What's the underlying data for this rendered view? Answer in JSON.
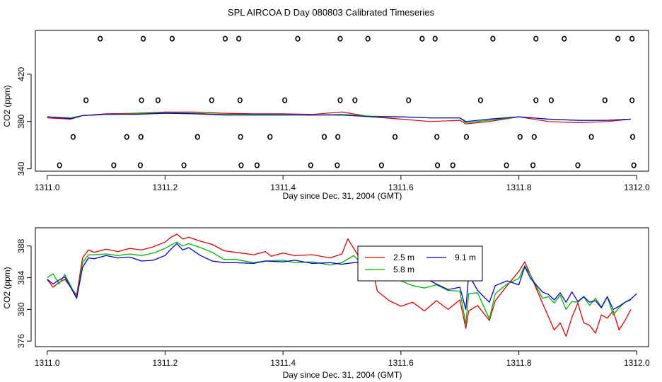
{
  "title": "SPL AIRCOA D  Day 080803  Calibrated Timeseries",
  "colors": {
    "s25": "#e00000",
    "s58": "#00b400",
    "s91": "#0000d0",
    "axis": "#000000"
  },
  "chart_data": [
    {
      "type": "line",
      "title": "SPL AIRCOA D  Day 080803  Calibrated Timeseries",
      "xlabel": "Day since Dec. 31, 2004 (GMT)",
      "ylabel": "CO2 (ppm)",
      "xlim": [
        1310.98,
        1312.02
      ],
      "ylim": [
        338,
        457
      ],
      "xticks": [
        1311.0,
        1311.2,
        1311.4,
        1311.6,
        1311.8,
        1312.0
      ],
      "xtick_labels": [
        "1311.0",
        "1311.2",
        "1311.4",
        "1311.6",
        "1311.8",
        "1312.0"
      ],
      "yticks": [
        340,
        380,
        420
      ],
      "ytick_labels": [
        "340",
        "380",
        "420"
      ],
      "series": [
        {
          "name": "2.5 m",
          "x": [
            1311.0,
            1311.04,
            1311.06,
            1311.1,
            1311.15,
            1311.2,
            1311.25,
            1311.3,
            1311.35,
            1311.4,
            1311.45,
            1311.5,
            1311.55,
            1311.6,
            1311.65,
            1311.7,
            1311.71,
            1311.75,
            1311.8,
            1311.85,
            1311.9,
            1311.95,
            1311.99
          ],
          "y": [
            383,
            382,
            385,
            386.5,
            387,
            388,
            388,
            387,
            386.5,
            386.5,
            386,
            388,
            384,
            382,
            380,
            381,
            378,
            380,
            384,
            380,
            379,
            380,
            382
          ]
        },
        {
          "name": "5.8 m",
          "x": [
            1311.0,
            1311.04,
            1311.06,
            1311.1,
            1311.15,
            1311.2,
            1311.25,
            1311.3,
            1311.35,
            1311.4,
            1311.45,
            1311.5,
            1311.55,
            1311.6,
            1311.65,
            1311.7,
            1311.71,
            1311.75,
            1311.8,
            1311.85,
            1311.9,
            1311.95,
            1311.99
          ],
          "y": [
            384,
            383,
            385,
            386,
            386.5,
            387.5,
            387,
            386,
            386,
            386,
            385.5,
            386,
            384.5,
            384,
            383,
            383,
            379,
            381,
            384,
            382,
            381,
            381,
            382
          ]
        },
        {
          "name": "9.1 m",
          "x": [
            1311.0,
            1311.04,
            1311.06,
            1311.1,
            1311.15,
            1311.2,
            1311.25,
            1311.3,
            1311.35,
            1311.4,
            1311.45,
            1311.5,
            1311.55,
            1311.6,
            1311.65,
            1311.7,
            1311.71,
            1311.75,
            1311.8,
            1311.85,
            1311.9,
            1311.95,
            1311.99
          ],
          "y": [
            384,
            382.5,
            385,
            386,
            386,
            387,
            386.5,
            385.5,
            385.5,
            385.5,
            385.5,
            385.5,
            384,
            384,
            383,
            383,
            380,
            382,
            384,
            382,
            381,
            381,
            382
          ]
        }
      ],
      "markers": {
        "symbol": "open circle",
        "groups": [
          {
            "y": 450,
            "x": [
              1311.09,
              1311.163,
              1311.212,
              1311.302,
              1311.325,
              1311.425,
              1311.497,
              1311.544,
              1311.636,
              1311.658,
              1311.756,
              1311.829,
              1311.877,
              1311.968,
              1311.992
            ]
          },
          {
            "y": 398,
            "x": [
              1311.066,
              1311.16,
              1311.188,
              1311.279,
              1311.327,
              1311.403,
              1311.497,
              1311.522,
              1311.613,
              1311.735,
              1311.829,
              1311.855,
              1311.946,
              1311.992
            ]
          },
          {
            "y": 367,
            "x": [
              1311.044,
              1311.135,
              1311.159,
              1311.255,
              1311.328,
              1311.378,
              1311.47,
              1311.493,
              1311.59,
              1311.661,
              1311.711,
              1311.802,
              1311.826,
              1311.923,
              1311.993
            ]
          },
          {
            "y": 343,
            "x": [
              1311.021,
              1311.113,
              1311.158,
              1311.232,
              1311.329,
              1311.356,
              1311.447,
              1311.492,
              1311.567,
              1311.662,
              1311.688,
              1311.779,
              1311.824,
              1311.9,
              1311.995
            ]
          }
        ]
      }
    },
    {
      "type": "line",
      "xlabel": "Day since Dec. 31, 2004 (GMT)",
      "ylabel": "CO2 (ppm)",
      "xlim": [
        1310.98,
        1312.02
      ],
      "ylim": [
        375.3,
        390.3
      ],
      "xticks": [
        1311.0,
        1311.2,
        1311.4,
        1311.6,
        1311.8,
        1312.0
      ],
      "xtick_labels": [
        "1311.0",
        "1311.2",
        "1311.4",
        "1311.6",
        "1311.8",
        "1312.0"
      ],
      "yticks": [
        376,
        380,
        384,
        388
      ],
      "ytick_labels": [
        "376",
        "380",
        "384",
        "388"
      ],
      "legend": {
        "placement": "center-right",
        "entries": [
          "2.5 m",
          "9.1 m",
          "5.8 m"
        ]
      },
      "series": [
        {
          "name": "2.5 m",
          "x": [
            1311.0,
            1311.01,
            1311.02,
            1311.03,
            1311.05,
            1311.06,
            1311.07,
            1311.08,
            1311.1,
            1311.12,
            1311.14,
            1311.16,
            1311.18,
            1311.2,
            1311.21,
            1311.22,
            1311.23,
            1311.24,
            1311.26,
            1311.28,
            1311.3,
            1311.32,
            1311.35,
            1311.37,
            1311.38,
            1311.4,
            1311.42,
            1311.45,
            1311.48,
            1311.5,
            1311.51,
            1311.53,
            1311.55,
            1311.56,
            1311.58,
            1311.6,
            1311.62,
            1311.64,
            1311.66,
            1311.68,
            1311.7,
            1311.71,
            1311.715,
            1311.73,
            1311.75,
            1311.76,
            1311.78,
            1311.8,
            1311.81,
            1311.82,
            1311.84,
            1311.85,
            1311.86,
            1311.87,
            1311.88,
            1311.89,
            1311.9,
            1311.91,
            1311.92,
            1311.93,
            1311.94,
            1311.95,
            1311.96,
            1311.97,
            1311.98,
            1311.99
          ],
          "y": [
            383.8,
            382.8,
            383.4,
            383.8,
            381.8,
            386.5,
            387.5,
            387.2,
            387.6,
            387.3,
            387.7,
            387.5,
            387.9,
            388.5,
            389.1,
            389.5,
            388.9,
            389.1,
            388.6,
            388.2,
            387.4,
            387.2,
            386.9,
            387.3,
            386.7,
            387.1,
            386.8,
            386.9,
            386.5,
            387.0,
            388.9,
            386.5,
            385.7,
            382.3,
            381.1,
            380.4,
            380.9,
            379.8,
            381.1,
            380.0,
            381.2,
            377.6,
            379.8,
            380.5,
            378.6,
            381.1,
            383.0,
            384.8,
            386.0,
            384.3,
            380.8,
            379.1,
            377.4,
            378.3,
            376.6,
            379.0,
            380.8,
            378.3,
            378.0,
            377.0,
            379.3,
            378.9,
            379.8,
            377.4,
            378.6,
            380.0
          ]
        },
        {
          "name": "5.8 m",
          "x": [
            1311.0,
            1311.01,
            1311.02,
            1311.03,
            1311.05,
            1311.06,
            1311.07,
            1311.08,
            1311.1,
            1311.12,
            1311.14,
            1311.16,
            1311.18,
            1311.2,
            1311.21,
            1311.22,
            1311.23,
            1311.24,
            1311.26,
            1311.28,
            1311.3,
            1311.32,
            1311.35,
            1311.37,
            1311.4,
            1311.42,
            1311.45,
            1311.48,
            1311.5,
            1311.52,
            1311.54,
            1311.56,
            1311.58,
            1311.6,
            1311.62,
            1311.64,
            1311.66,
            1311.68,
            1311.7,
            1311.71,
            1311.715,
            1311.73,
            1311.75,
            1311.76,
            1311.78,
            1311.8,
            1311.81,
            1311.82,
            1311.84,
            1311.85,
            1311.86,
            1311.87,
            1311.88,
            1311.89,
            1311.9,
            1311.91,
            1311.92,
            1311.93,
            1311.94,
            1311.95,
            1311.96,
            1311.97,
            1311.98,
            1311.99
          ],
          "y": [
            384.0,
            384.5,
            383.2,
            384.4,
            381.5,
            385.9,
            386.9,
            386.9,
            387.0,
            386.8,
            387.0,
            386.8,
            387.1,
            387.7,
            388.1,
            388.5,
            388.0,
            388.3,
            387.8,
            387.2,
            386.3,
            386.3,
            385.9,
            386.1,
            386.2,
            385.9,
            386.0,
            385.6,
            385.9,
            386.8,
            385.2,
            385.0,
            384.4,
            383.6,
            383.0,
            382.7,
            383.1,
            382.4,
            382.3,
            378.2,
            382.0,
            382.1,
            378.8,
            382.0,
            383.2,
            383.9,
            385.5,
            384.3,
            381.4,
            381.6,
            380.8,
            381.8,
            380.0,
            381.0,
            380.9,
            381.6,
            380.5,
            381.4,
            380.3,
            381.6,
            379.3,
            380.2,
            380.9,
            381.2
          ]
        },
        {
          "name": "9.1 m",
          "x": [
            1311.0,
            1311.01,
            1311.02,
            1311.03,
            1311.05,
            1311.06,
            1311.07,
            1311.08,
            1311.1,
            1311.12,
            1311.14,
            1311.16,
            1311.18,
            1311.2,
            1311.21,
            1311.22,
            1311.23,
            1311.24,
            1311.26,
            1311.28,
            1311.3,
            1311.32,
            1311.35,
            1311.37,
            1311.4,
            1311.42,
            1311.45,
            1311.48,
            1311.5,
            1311.52,
            1311.54,
            1311.56,
            1311.58,
            1311.6,
            1311.62,
            1311.64,
            1311.66,
            1311.68,
            1311.7,
            1311.71,
            1311.715,
            1311.73,
            1311.75,
            1311.76,
            1311.78,
            1311.8,
            1311.81,
            1311.82,
            1311.84,
            1311.85,
            1311.86,
            1311.87,
            1311.88,
            1311.89,
            1311.9,
            1311.91,
            1311.92,
            1311.93,
            1311.94,
            1311.95,
            1311.96,
            1311.97,
            1311.98,
            1311.99,
            1312.0
          ],
          "y": [
            383.8,
            383.2,
            383.7,
            384.1,
            381.4,
            385.3,
            386.5,
            386.4,
            386.8,
            386.5,
            386.6,
            386.1,
            386.2,
            386.8,
            387.6,
            388.3,
            387.5,
            387.8,
            386.8,
            386.1,
            385.9,
            385.9,
            385.8,
            386.1,
            386.0,
            386.2,
            385.8,
            385.9,
            385.7,
            385.9,
            386.0,
            385.0,
            384.5,
            383.6,
            383.7,
            384.0,
            383.2,
            382.5,
            382.8,
            380.0,
            384.4,
            382.4,
            380.9,
            383.0,
            383.6,
            383.1,
            385.4,
            383.9,
            382.2,
            381.9,
            381.2,
            382.1,
            380.9,
            382.2,
            381.0,
            381.6,
            380.9,
            381.1,
            380.2,
            381.6,
            380.0,
            380.4,
            380.9,
            381.3,
            382.0
          ]
        }
      ]
    }
  ]
}
